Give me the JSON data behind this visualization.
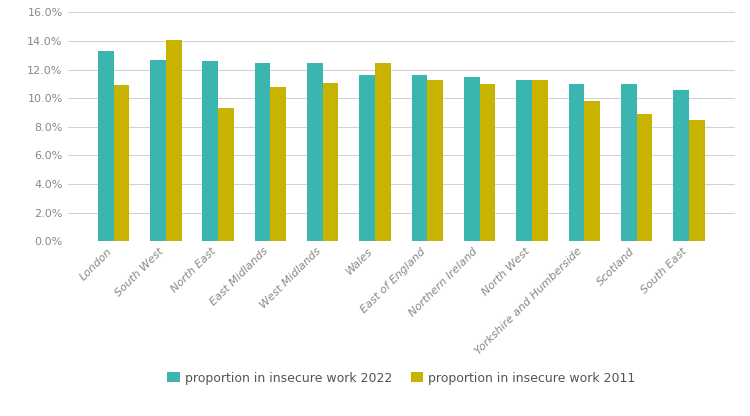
{
  "categories": [
    "London",
    "South West",
    "North East",
    "East Midlands",
    "West Midlands",
    "Wales",
    "East of England",
    "Northern Ireland",
    "North West",
    "Yorkshire and Humberside",
    "Scotland",
    "South East"
  ],
  "values_2022": [
    0.133,
    0.127,
    0.126,
    0.125,
    0.125,
    0.116,
    0.116,
    0.115,
    0.113,
    0.11,
    0.11,
    0.106
  ],
  "values_2011": [
    0.109,
    0.141,
    0.093,
    0.108,
    0.111,
    0.125,
    0.113,
    0.11,
    0.113,
    0.098,
    0.089,
    0.085
  ],
  "color_2022": "#3ab5b0",
  "color_2011": "#c8b400",
  "ylim": [
    0,
    0.16
  ],
  "ytick_step": 0.02,
  "legend_label_2022": "proportion in insecure work 2022",
  "legend_label_2011": "proportion in insecure work 2011",
  "background_color": "#ffffff",
  "grid_color": "#d0d0d0",
  "bar_width": 0.3,
  "figsize": [
    7.5,
    4.16
  ],
  "dpi": 100
}
